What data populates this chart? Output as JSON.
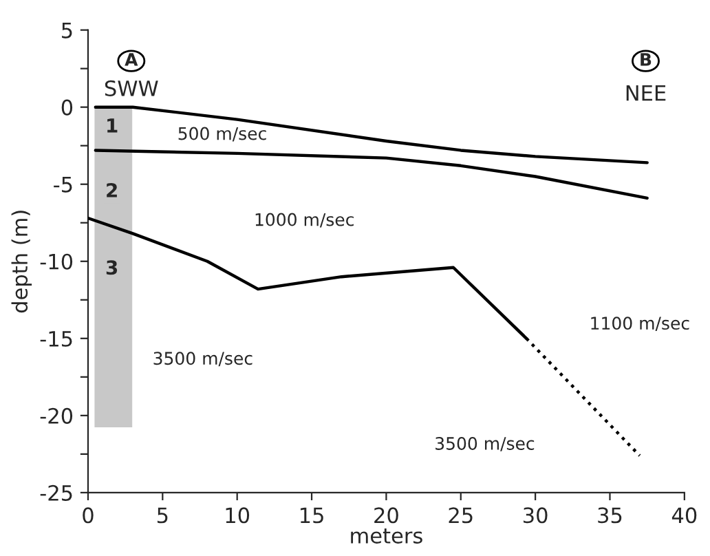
{
  "chart_data": {
    "type": "line",
    "xlabel": "meters",
    "ylabel": "depth (m)",
    "xlim": [
      0,
      40
    ],
    "ylim": [
      -25,
      5
    ],
    "xticks": [
      0,
      5,
      10,
      15,
      20,
      25,
      30,
      35,
      40
    ],
    "yticks": [
      -25,
      {
        "value": -22.5,
        "label": null
      },
      -20,
      {
        "value": -17.5,
        "label": null
      },
      -15,
      {
        "value": -12.5,
        "label": null
      },
      -10,
      {
        "value": -7.5,
        "label": null
      },
      -5,
      {
        "value": -2.5,
        "label": null
      },
      0,
      {
        "value": 2.5,
        "label": null
      },
      5
    ],
    "grid": false,
    "legend": false,
    "marker": "none",
    "series": [
      {
        "type": "bar",
        "color": "#c8c8c8",
        "x": [
          1.7
        ],
        "values": [
          -20.7
        ]
      },
      {
        "color": "#000000",
        "x": [
          0.5,
          3,
          10,
          20,
          25,
          30,
          37.5
        ],
        "values": [
          0,
          0,
          -0.8,
          -2.2,
          -2.8,
          -3.2,
          -3.6
        ]
      },
      {
        "color": "#000000",
        "x": [
          0.5,
          10,
          20,
          25,
          30,
          37.5
        ],
        "values": [
          -2.8,
          -3.0,
          -3.3,
          -3.8,
          -4.5,
          -5.9
        ]
      },
      {
        "color": "#000000",
        "x": [
          0,
          3,
          8,
          11.4,
          17,
          24.5,
          29.4
        ],
        "values": [
          -7.2,
          -8.2,
          -10,
          -11.8,
          -11.0,
          -10.4,
          -15.0
        ]
      },
      {
        "color": "#000000",
        "line_style": "dotted",
        "x": [
          29.4,
          37.0
        ],
        "values": [
          -15.0,
          -22.6
        ]
      }
    ],
    "annotations": [
      "A",
      "SWW",
      "B",
      "NEE",
      "1",
      "2",
      "3",
      "500 m/sec",
      "1000 m/sec",
      "3500 m/sec",
      "1100 m/sec",
      "3500 m/sec"
    ]
  }
}
